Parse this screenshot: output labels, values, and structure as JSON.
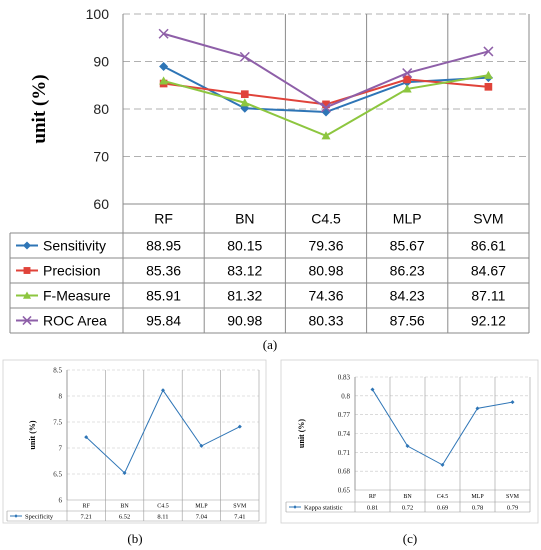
{
  "panel_labels": {
    "a": "(a)",
    "b": "(b)",
    "c": "(c)"
  },
  "chart_data": [
    {
      "id": "a",
      "type": "line",
      "categories": [
        "RF",
        "BN",
        "C4.5",
        "MLP",
        "SVM"
      ],
      "ylabel": "unit (%)",
      "ylim": [
        60,
        100
      ],
      "yticks": [
        60,
        70,
        80,
        90,
        100
      ],
      "grid": true,
      "legend": "table",
      "series": [
        {
          "name": "Sensitivity",
          "color": "#2E75B6",
          "marker": "diamond",
          "values": [
            88.95,
            80.15,
            79.36,
            85.67,
            86.61
          ],
          "labels": [
            "88.95",
            "80.15",
            "79.36",
            "85.67",
            "86.61"
          ]
        },
        {
          "name": "Precision",
          "color": "#E0433A",
          "marker": "square",
          "values": [
            85.36,
            83.12,
            80.98,
            86.23,
            84.67
          ],
          "labels": [
            "85.36",
            "83.12",
            "80.98",
            "86.23",
            "84.67"
          ]
        },
        {
          "name": "F-Measure",
          "color": "#8DC63F",
          "marker": "triangle",
          "values": [
            85.91,
            81.32,
            74.36,
            84.23,
            87.11
          ],
          "labels": [
            "85.91",
            "81.32",
            "74.36",
            "84.23",
            "87.11"
          ]
        },
        {
          "name": "ROC Area",
          "color": "#8E5FA8",
          "marker": "x",
          "values": [
            95.84,
            90.98,
            80.33,
            87.56,
            92.12
          ],
          "labels": [
            "95.84",
            "90.98",
            "80.33",
            "87.56",
            "92.12"
          ]
        }
      ]
    },
    {
      "id": "b",
      "type": "line",
      "categories": [
        "RF",
        "BN",
        "C4.5",
        "MLP",
        "SVM"
      ],
      "ylabel": "unit (%)",
      "ylim": [
        6,
        8.5
      ],
      "yticks": [
        "6",
        "6.5",
        "7",
        "7.5",
        "8",
        "8.5"
      ],
      "grid": true,
      "legend": "table",
      "series": [
        {
          "name": "Specificity",
          "color": "#2E75B6",
          "marker": "diamond",
          "values": [
            7.21,
            6.52,
            8.11,
            7.04,
            7.41
          ],
          "labels": [
            "7.21",
            "6.52",
            "8.11",
            "7.04",
            "7.41"
          ]
        }
      ]
    },
    {
      "id": "c",
      "type": "line",
      "categories": [
        "RF",
        "BN",
        "C4.5",
        "MLP",
        "SVM"
      ],
      "ylabel": "unit (%)",
      "ylim": [
        0.65,
        0.83
      ],
      "yticks": [
        "0.65",
        "0.68",
        "0.71",
        "0.74",
        "0.77",
        "0.8",
        "0.83"
      ],
      "grid": true,
      "legend": "table",
      "series": [
        {
          "name": "Kappa statistic",
          "color": "#2E75B6",
          "marker": "diamond",
          "values": [
            0.81,
            0.72,
            0.69,
            0.78,
            0.79
          ],
          "labels": [
            "0.81",
            "0.72",
            "0.69",
            "0.78",
            "0.79"
          ]
        }
      ]
    }
  ]
}
